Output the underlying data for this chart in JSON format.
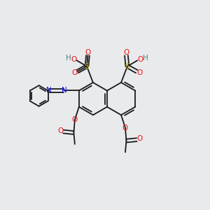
{
  "bg": "#e8eaec",
  "bond_color": "#1a1a1a",
  "lw": 1.3,
  "colors": {
    "O": "#ee1111",
    "S": "#bbaa00",
    "N": "#1111ee",
    "H": "#4a8080"
  },
  "bl": 0.78,
  "mid_x": 5.1,
  "mid_y": 5.3,
  "xlim": [
    0,
    10
  ],
  "ylim": [
    0,
    10
  ],
  "figsize": [
    3.0,
    3.0
  ],
  "dpi": 100
}
